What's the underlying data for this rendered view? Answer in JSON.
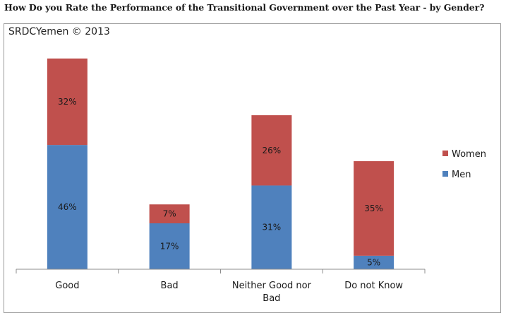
{
  "chart_data": {
    "type": "bar",
    "stacked": true,
    "title": "How Do you Rate the Performance of the Transitional Government over the Past Year - by Gender?",
    "watermark": "SRDCYemen © 2013",
    "categories": [
      [
        "Good"
      ],
      [
        "Bad"
      ],
      [
        "Neither Good nor",
        "Bad"
      ],
      [
        "Do not Know"
      ]
    ],
    "series": [
      {
        "name": "Men",
        "color": "#4f81bd",
        "values": [
          46,
          17,
          31,
          5
        ],
        "labels": [
          "46%",
          "17%",
          "31%",
          "5%"
        ]
      },
      {
        "name": "Women",
        "color": "#c0504d",
        "values": [
          32,
          7,
          26,
          35
        ],
        "labels": [
          "32%",
          "7%",
          "26%",
          "35%"
        ]
      }
    ],
    "legend_position": "right",
    "legend_order": [
      "Women",
      "Men"
    ],
    "ylim": [
      0,
      85
    ],
    "grid": false
  }
}
